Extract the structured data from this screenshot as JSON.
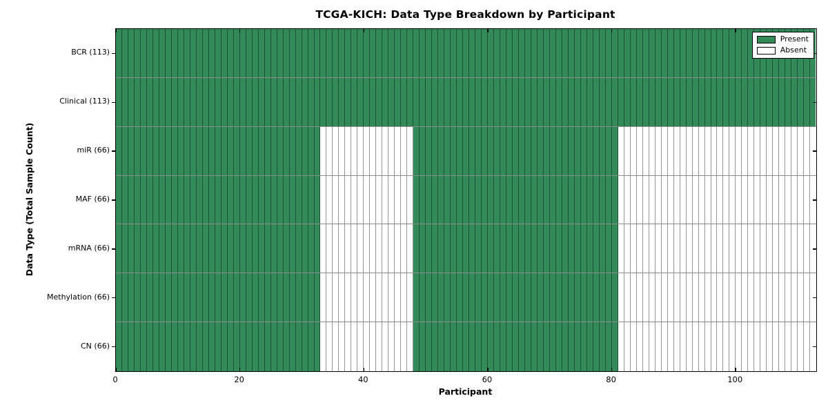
{
  "chart_data": {
    "type": "heatmap",
    "title": "TCGA-KICH: Data Type Breakdown by Participant",
    "xlabel": "Participant",
    "ylabel": "Data Type (Total Sample Count)",
    "xlim": [
      0,
      113
    ],
    "n_participants": 113,
    "x_ticks": [
      0,
      20,
      40,
      60,
      80,
      100
    ],
    "grid": "cell-edges-on",
    "legend_position": "upper right",
    "legend": [
      {
        "label": "Present",
        "color": "#318A58"
      },
      {
        "label": "Absent",
        "color": "#FFFFFF"
      }
    ],
    "colors": {
      "present": "#318A58",
      "absent": "#FFFFFF",
      "spine": "#000000"
    },
    "rows": [
      {
        "label": "BCR (113)",
        "data_type": "BCR",
        "total_samples": 113,
        "present_ranges": [
          [
            0,
            113
          ]
        ]
      },
      {
        "label": "Clinical (113)",
        "data_type": "Clinical",
        "total_samples": 113,
        "present_ranges": [
          [
            0,
            113
          ]
        ]
      },
      {
        "label": "miR (66)",
        "data_type": "miR",
        "total_samples": 66,
        "present_ranges": [
          [
            0,
            33
          ],
          [
            48,
            81
          ]
        ]
      },
      {
        "label": "MAF (66)",
        "data_type": "MAF",
        "total_samples": 66,
        "present_ranges": [
          [
            0,
            33
          ],
          [
            48,
            81
          ]
        ]
      },
      {
        "label": "mRNA (66)",
        "data_type": "mRNA",
        "total_samples": 66,
        "present_ranges": [
          [
            0,
            33
          ],
          [
            48,
            81
          ]
        ]
      },
      {
        "label": "Methylation (66)",
        "data_type": "Methylation",
        "total_samples": 66,
        "present_ranges": [
          [
            0,
            33
          ],
          [
            48,
            81
          ]
        ]
      },
      {
        "label": "CN (66)",
        "data_type": "CN",
        "total_samples": 66,
        "present_ranges": [
          [
            0,
            33
          ],
          [
            48,
            81
          ]
        ]
      }
    ]
  }
}
